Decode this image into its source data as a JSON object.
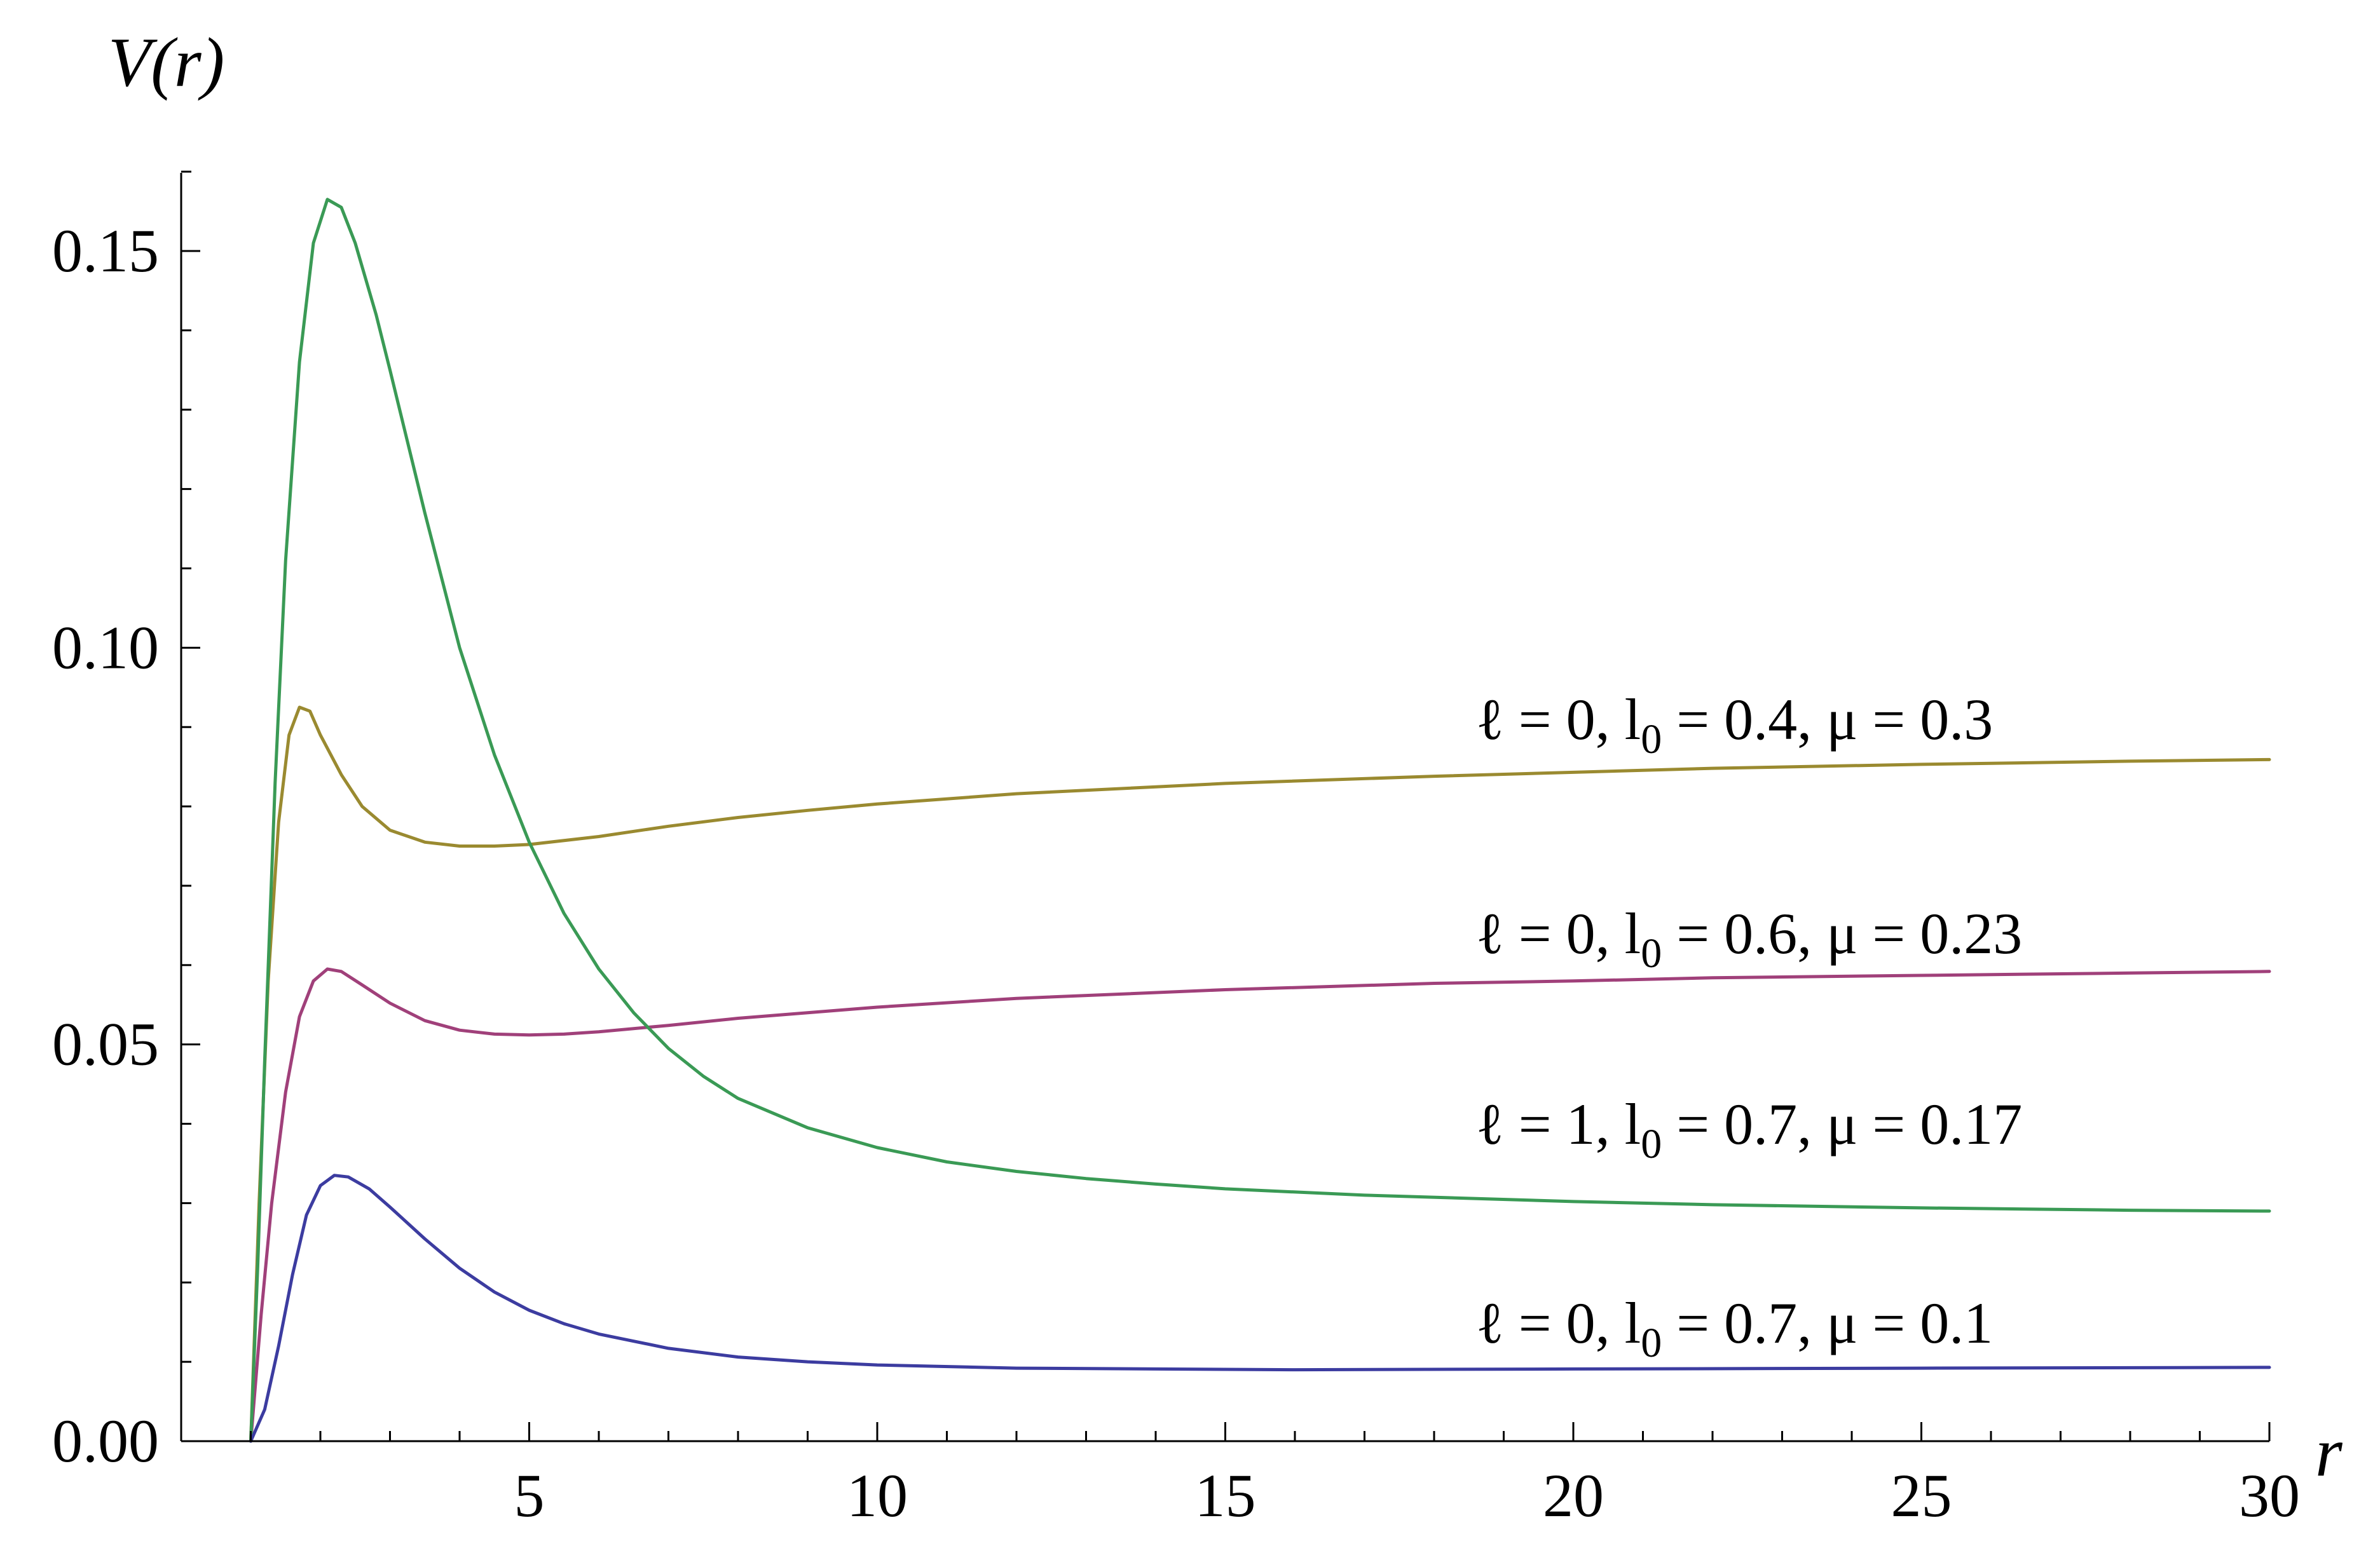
{
  "chart_data": {
    "type": "line",
    "title": "",
    "xlabel": "r",
    "ylabel": "V(r)",
    "xlim": [
      0,
      30
    ],
    "ylim": [
      0,
      0.16
    ],
    "x_ticks": [
      5,
      10,
      15,
      20,
      25,
      30
    ],
    "x_tick_labels": [
      "5",
      "10",
      "15",
      "20",
      "25",
      "30"
    ],
    "y_ticks": [
      0,
      0.05,
      0.1,
      0.15
    ],
    "y_tick_labels": [
      "0.00",
      "0.05",
      "0.10",
      "0.15"
    ],
    "grid": false,
    "legend": "labels placed next to curves at right",
    "series": [
      {
        "label": "ℓ = 0,  l0 = 0.4,  μ = 0.3",
        "label_parts": [
          "ℓ = 0,  l",
          "0",
          " = 0.4,  μ = 0.3"
        ],
        "color": "#9a8a30",
        "label_anchor": [
          18.6,
          0.0885
        ],
        "points": [
          [
            1.0,
            0
          ],
          [
            1.12,
            0.03
          ],
          [
            1.25,
            0.058
          ],
          [
            1.4,
            0.078
          ],
          [
            1.55,
            0.089
          ],
          [
            1.7,
            0.0925
          ],
          [
            1.85,
            0.092
          ],
          [
            2.0,
            0.089
          ],
          [
            2.3,
            0.084
          ],
          [
            2.6,
            0.08
          ],
          [
            3.0,
            0.077
          ],
          [
            3.5,
            0.0755
          ],
          [
            4.0,
            0.075
          ],
          [
            4.5,
            0.075
          ],
          [
            5.0,
            0.0752
          ],
          [
            6.0,
            0.0762
          ],
          [
            7.0,
            0.0775
          ],
          [
            8.0,
            0.0786
          ],
          [
            9.0,
            0.0795
          ],
          [
            10.0,
            0.0803
          ],
          [
            12.0,
            0.0816
          ],
          [
            15.0,
            0.0829
          ],
          [
            18.0,
            0.0838
          ],
          [
            20.0,
            0.0843
          ],
          [
            22.0,
            0.0848
          ],
          [
            25.0,
            0.0853
          ],
          [
            28.0,
            0.0857
          ],
          [
            30.0,
            0.0859
          ]
        ]
      },
      {
        "label": "ℓ = 0,  l0 = 0.6,  μ = 0.23",
        "label_parts": [
          "ℓ = 0,  l",
          "0",
          " = 0.6,  μ = 0.23"
        ],
        "color": "#a0407a",
        "label_anchor": [
          18.6,
          0.0615
        ],
        "points": [
          [
            1.0,
            0
          ],
          [
            1.15,
            0.016
          ],
          [
            1.3,
            0.03
          ],
          [
            1.5,
            0.044
          ],
          [
            1.7,
            0.0535
          ],
          [
            1.9,
            0.058
          ],
          [
            2.1,
            0.0595
          ],
          [
            2.3,
            0.0592
          ],
          [
            2.6,
            0.0575
          ],
          [
            3.0,
            0.0552
          ],
          [
            3.5,
            0.053
          ],
          [
            4.0,
            0.0518
          ],
          [
            4.5,
            0.0513
          ],
          [
            5.0,
            0.0512
          ],
          [
            5.5,
            0.0513
          ],
          [
            6.0,
            0.0516
          ],
          [
            7.0,
            0.0524
          ],
          [
            8.0,
            0.0533
          ],
          [
            9.0,
            0.054
          ],
          [
            10.0,
            0.0547
          ],
          [
            12.0,
            0.0558
          ],
          [
            15.0,
            0.0569
          ],
          [
            18.0,
            0.0577
          ],
          [
            20.0,
            0.058
          ],
          [
            22.0,
            0.0584
          ],
          [
            25.0,
            0.0587
          ],
          [
            28.0,
            0.059
          ],
          [
            30.0,
            0.0592
          ]
        ]
      },
      {
        "label": "ℓ = 1,  l0 = 0.7,  μ = 0.17",
        "label_parts": [
          "ℓ = 1,  l",
          "0",
          " = 0.7,  μ = 0.17"
        ],
        "color": "#3a9a55",
        "label_anchor": [
          18.6,
          0.0375
        ],
        "points": [
          [
            1.0,
            0
          ],
          [
            1.1,
            0.022
          ],
          [
            1.2,
            0.048
          ],
          [
            1.35,
            0.083
          ],
          [
            1.5,
            0.111
          ],
          [
            1.7,
            0.136
          ],
          [
            1.9,
            0.151
          ],
          [
            2.1,
            0.1565
          ],
          [
            2.3,
            0.1555
          ],
          [
            2.5,
            0.151
          ],
          [
            2.8,
            0.142
          ],
          [
            3.0,
            0.135
          ],
          [
            3.5,
            0.117
          ],
          [
            4.0,
            0.1
          ],
          [
            4.5,
            0.0865
          ],
          [
            5.0,
            0.0755
          ],
          [
            5.5,
            0.0665
          ],
          [
            6.0,
            0.0595
          ],
          [
            6.5,
            0.054
          ],
          [
            7.0,
            0.0495
          ],
          [
            7.5,
            0.046
          ],
          [
            8.0,
            0.0432
          ],
          [
            9.0,
            0.0395
          ],
          [
            10.0,
            0.037
          ],
          [
            11.0,
            0.0352
          ],
          [
            12.0,
            0.034
          ],
          [
            13.0,
            0.0331
          ],
          [
            14.0,
            0.0324
          ],
          [
            15.0,
            0.0318
          ],
          [
            17.0,
            0.031
          ],
          [
            20.0,
            0.0302
          ],
          [
            22.0,
            0.0298
          ],
          [
            25.0,
            0.0294
          ],
          [
            28.0,
            0.0291
          ],
          [
            30.0,
            0.029
          ]
        ]
      },
      {
        "label": "ℓ = 0,  l0 = 0.7,  μ = 0.1",
        "label_parts": [
          "ℓ = 0,  l",
          "0",
          " = 0.7,  μ = 0.1"
        ],
        "color": "#3c3ca0",
        "label_anchor": [
          18.6,
          0.0124
        ],
        "points": [
          [
            1.0,
            0
          ],
          [
            1.2,
            0.004
          ],
          [
            1.4,
            0.012
          ],
          [
            1.6,
            0.021
          ],
          [
            1.8,
            0.0285
          ],
          [
            2.0,
            0.0322
          ],
          [
            2.2,
            0.0335
          ],
          [
            2.4,
            0.0333
          ],
          [
            2.7,
            0.0318
          ],
          [
            3.0,
            0.0295
          ],
          [
            3.5,
            0.0255
          ],
          [
            4.0,
            0.0218
          ],
          [
            4.5,
            0.0188
          ],
          [
            5.0,
            0.0165
          ],
          [
            5.5,
            0.0148
          ],
          [
            6.0,
            0.0135
          ],
          [
            7.0,
            0.0117
          ],
          [
            8.0,
            0.0106
          ],
          [
            9.0,
            0.01
          ],
          [
            10.0,
            0.0096
          ],
          [
            12.0,
            0.0092
          ],
          [
            14.0,
            0.0091
          ],
          [
            16.0,
            0.009
          ],
          [
            20.0,
            0.0091
          ],
          [
            25.0,
            0.0092
          ],
          [
            30.0,
            0.0093
          ]
        ]
      }
    ]
  }
}
